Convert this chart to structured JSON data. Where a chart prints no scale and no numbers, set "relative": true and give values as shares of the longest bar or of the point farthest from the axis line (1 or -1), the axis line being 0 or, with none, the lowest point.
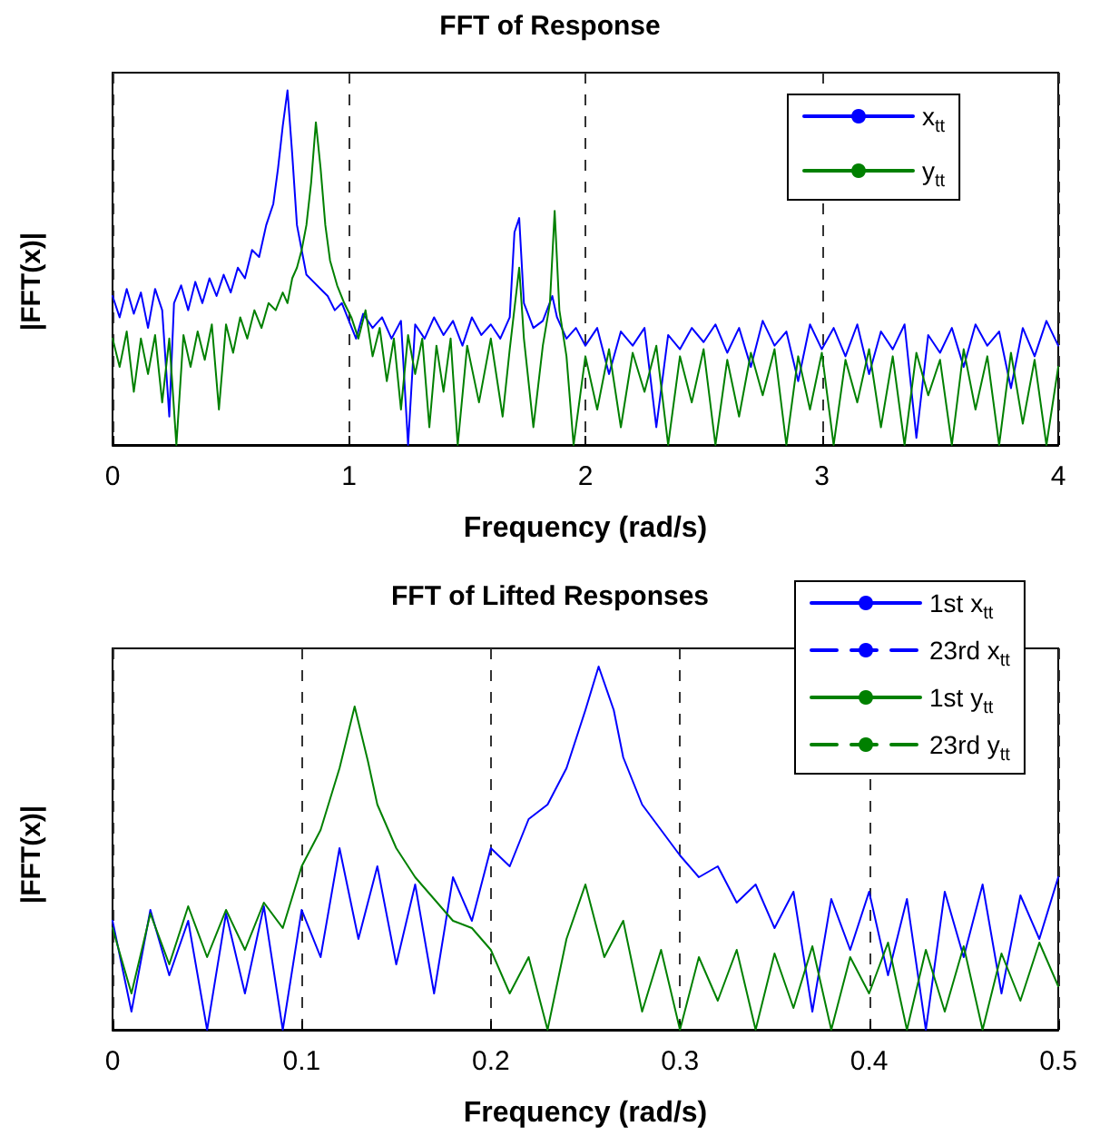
{
  "chart_data": [
    {
      "type": "line",
      "title": "FFT of Response",
      "xlabel": "Frequency (rad/s)",
      "ylabel": "|FFT(x)|",
      "relative": true,
      "xlim": [
        0,
        4
      ],
      "xticks": [
        0,
        1,
        2,
        3,
        4
      ],
      "grid": "x",
      "legend": "top right",
      "marker": "none",
      "tick_labels": "x",
      "series": [
        {
          "name": "x$_{tt}$",
          "color": "#0000ff",
          "line_style": "solid",
          "x": [
            0,
            0.03,
            0.06,
            0.09,
            0.12,
            0.15,
            0.18,
            0.21,
            0.24,
            0.26,
            0.29,
            0.32,
            0.35,
            0.38,
            0.41,
            0.44,
            0.47,
            0.5,
            0.53,
            0.56,
            0.59,
            0.62,
            0.65,
            0.68,
            0.7,
            0.72,
            0.74,
            0.76,
            0.78,
            0.8,
            0.82,
            0.85,
            0.88,
            0.91,
            0.94,
            0.97,
            1.0,
            1.03,
            1.06,
            1.1,
            1.14,
            1.18,
            1.22,
            1.25,
            1.28,
            1.32,
            1.36,
            1.4,
            1.44,
            1.48,
            1.52,
            1.56,
            1.6,
            1.64,
            1.68,
            1.7,
            1.72,
            1.74,
            1.78,
            1.82,
            1.86,
            1.88,
            1.92,
            1.96,
            2.0,
            2.05,
            2.1,
            2.15,
            2.2,
            2.25,
            2.3,
            2.35,
            2.4,
            2.45,
            2.5,
            2.55,
            2.6,
            2.65,
            2.7,
            2.75,
            2.8,
            2.85,
            2.9,
            2.95,
            3.0,
            3.05,
            3.1,
            3.15,
            3.2,
            3.25,
            3.3,
            3.35,
            3.4,
            3.45,
            3.5,
            3.55,
            3.6,
            3.65,
            3.7,
            3.75,
            3.8,
            3.85,
            3.9,
            3.95,
            4.0
          ],
          "values": [
            0.42,
            0.36,
            0.44,
            0.37,
            0.43,
            0.33,
            0.44,
            0.38,
            0.08,
            0.4,
            0.45,
            0.38,
            0.46,
            0.4,
            0.47,
            0.42,
            0.48,
            0.43,
            0.5,
            0.47,
            0.55,
            0.53,
            0.62,
            0.68,
            0.78,
            0.9,
            1.0,
            0.82,
            0.62,
            0.55,
            0.48,
            0.46,
            0.44,
            0.42,
            0.38,
            0.4,
            0.35,
            0.3,
            0.37,
            0.33,
            0.36,
            0.3,
            0.35,
            0.0,
            0.34,
            0.3,
            0.36,
            0.31,
            0.35,
            0.28,
            0.36,
            0.31,
            0.34,
            0.3,
            0.36,
            0.6,
            0.64,
            0.4,
            0.33,
            0.35,
            0.42,
            0.36,
            0.3,
            0.33,
            0.28,
            0.33,
            0.2,
            0.32,
            0.28,
            0.33,
            0.05,
            0.31,
            0.27,
            0.33,
            0.29,
            0.34,
            0.26,
            0.33,
            0.22,
            0.35,
            0.28,
            0.32,
            0.18,
            0.34,
            0.27,
            0.33,
            0.25,
            0.34,
            0.2,
            0.32,
            0.27,
            0.34,
            0.02,
            0.31,
            0.26,
            0.33,
            0.22,
            0.34,
            0.28,
            0.32,
            0.16,
            0.33,
            0.25,
            0.35,
            0.28
          ]
        },
        {
          "name": "y$_{tt}$",
          "color": "#008000",
          "line_style": "solid",
          "x": [
            0,
            0.03,
            0.06,
            0.09,
            0.12,
            0.15,
            0.18,
            0.21,
            0.24,
            0.27,
            0.3,
            0.33,
            0.36,
            0.39,
            0.42,
            0.45,
            0.48,
            0.51,
            0.54,
            0.57,
            0.6,
            0.63,
            0.66,
            0.69,
            0.72,
            0.74,
            0.76,
            0.78,
            0.8,
            0.82,
            0.84,
            0.86,
            0.88,
            0.9,
            0.92,
            0.95,
            0.98,
            1.01,
            1.04,
            1.07,
            1.1,
            1.13,
            1.16,
            1.19,
            1.22,
            1.25,
            1.28,
            1.31,
            1.34,
            1.37,
            1.4,
            1.43,
            1.46,
            1.5,
            1.55,
            1.6,
            1.65,
            1.68,
            1.72,
            1.74,
            1.78,
            1.82,
            1.85,
            1.87,
            1.89,
            1.92,
            1.95,
            2.0,
            2.05,
            2.1,
            2.15,
            2.2,
            2.25,
            2.3,
            2.35,
            2.4,
            2.45,
            2.5,
            2.55,
            2.6,
            2.65,
            2.7,
            2.75,
            2.8,
            2.85,
            2.9,
            2.95,
            3.0,
            3.05,
            3.1,
            3.15,
            3.2,
            3.25,
            3.3,
            3.35,
            3.4,
            3.45,
            3.5,
            3.55,
            3.6,
            3.65,
            3.7,
            3.75,
            3.8,
            3.85,
            3.9,
            3.95,
            4.0
          ],
          "values": [
            0.3,
            0.22,
            0.32,
            0.15,
            0.3,
            0.2,
            0.31,
            0.12,
            0.3,
            0.0,
            0.31,
            0.22,
            0.32,
            0.24,
            0.34,
            0.1,
            0.34,
            0.26,
            0.36,
            0.3,
            0.38,
            0.33,
            0.4,
            0.38,
            0.43,
            0.4,
            0.47,
            0.5,
            0.55,
            0.62,
            0.74,
            0.91,
            0.78,
            0.62,
            0.52,
            0.45,
            0.4,
            0.36,
            0.3,
            0.38,
            0.25,
            0.33,
            0.18,
            0.3,
            0.1,
            0.31,
            0.2,
            0.3,
            0.05,
            0.28,
            0.15,
            0.3,
            0.0,
            0.28,
            0.12,
            0.3,
            0.08,
            0.27,
            0.5,
            0.3,
            0.05,
            0.28,
            0.4,
            0.66,
            0.38,
            0.25,
            0.0,
            0.25,
            0.1,
            0.27,
            0.05,
            0.26,
            0.15,
            0.28,
            0.0,
            0.25,
            0.12,
            0.27,
            0.0,
            0.24,
            0.08,
            0.26,
            0.14,
            0.27,
            0.0,
            0.25,
            0.1,
            0.26,
            0.0,
            0.24,
            0.12,
            0.27,
            0.05,
            0.25,
            0.0,
            0.26,
            0.14,
            0.24,
            0.0,
            0.27,
            0.1,
            0.25,
            0.0,
            0.26,
            0.06,
            0.24,
            0.0,
            0.22
          ]
        }
      ]
    },
    {
      "type": "line",
      "title": "FFT of Lifted Responses",
      "xlabel": "Frequency (rad/s)",
      "ylabel": "|FFT(x)|",
      "relative": true,
      "xlim": [
        0,
        0.5
      ],
      "xticks": [
        0,
        0.1,
        0.2,
        0.3,
        0.4,
        0.5
      ],
      "grid": "x",
      "legend": "top right",
      "marker": "none",
      "tick_labels": "x",
      "series": [
        {
          "name": "1st x$_{tt}$",
          "color": "#0000ff",
          "line_style": "solid",
          "x": [
            0,
            0.01,
            0.02,
            0.03,
            0.04,
            0.05,
            0.06,
            0.07,
            0.08,
            0.09,
            0.1,
            0.11,
            0.12,
            0.13,
            0.14,
            0.15,
            0.16,
            0.17,
            0.18,
            0.19,
            0.2,
            0.21,
            0.22,
            0.23,
            0.24,
            0.25,
            0.257,
            0.265,
            0.27,
            0.28,
            0.29,
            0.3,
            0.31,
            0.32,
            0.33,
            0.34,
            0.35,
            0.36,
            0.37,
            0.38,
            0.39,
            0.4,
            0.41,
            0.42,
            0.43,
            0.44,
            0.45,
            0.46,
            0.47,
            0.48,
            0.49,
            0.5
          ],
          "values": [
            0.3,
            0.05,
            0.33,
            0.15,
            0.3,
            0.0,
            0.32,
            0.1,
            0.34,
            0.0,
            0.33,
            0.2,
            0.5,
            0.25,
            0.45,
            0.18,
            0.4,
            0.1,
            0.42,
            0.3,
            0.5,
            0.45,
            0.58,
            0.62,
            0.72,
            0.88,
            1.0,
            0.88,
            0.75,
            0.62,
            0.55,
            0.48,
            0.42,
            0.45,
            0.35,
            0.4,
            0.28,
            0.38,
            0.05,
            0.36,
            0.22,
            0.38,
            0.15,
            0.36,
            0.0,
            0.38,
            0.2,
            0.4,
            0.1,
            0.37,
            0.25,
            0.42
          ]
        },
        {
          "name": "23rd x$_{tt}$",
          "color": "#0000ff",
          "line_style": "dashed"
        },
        {
          "name": "1st y$_{tt}$",
          "color": "#008000",
          "line_style": "solid",
          "x": [
            0,
            0.01,
            0.02,
            0.03,
            0.04,
            0.05,
            0.06,
            0.07,
            0.08,
            0.09,
            0.1,
            0.11,
            0.12,
            0.128,
            0.135,
            0.14,
            0.15,
            0.16,
            0.17,
            0.18,
            0.19,
            0.2,
            0.21,
            0.22,
            0.23,
            0.24,
            0.25,
            0.26,
            0.27,
            0.28,
            0.29,
            0.3,
            0.31,
            0.32,
            0.33,
            0.34,
            0.35,
            0.36,
            0.37,
            0.38,
            0.39,
            0.4,
            0.41,
            0.42,
            0.43,
            0.44,
            0.45,
            0.46,
            0.47,
            0.48,
            0.49,
            0.5
          ],
          "values": [
            0.28,
            0.1,
            0.32,
            0.18,
            0.34,
            0.2,
            0.33,
            0.22,
            0.35,
            0.28,
            0.45,
            0.55,
            0.72,
            0.89,
            0.74,
            0.62,
            0.5,
            0.42,
            0.36,
            0.3,
            0.28,
            0.22,
            0.1,
            0.2,
            0.0,
            0.25,
            0.4,
            0.2,
            0.3,
            0.05,
            0.22,
            0.0,
            0.2,
            0.08,
            0.22,
            0.0,
            0.21,
            0.06,
            0.23,
            0.0,
            0.2,
            0.1,
            0.24,
            0.0,
            0.22,
            0.05,
            0.23,
            0.0,
            0.21,
            0.08,
            0.24,
            0.12
          ]
        },
        {
          "name": "23rd y$_{tt}$",
          "color": "#008000",
          "line_style": "dashed"
        }
      ]
    }
  ]
}
